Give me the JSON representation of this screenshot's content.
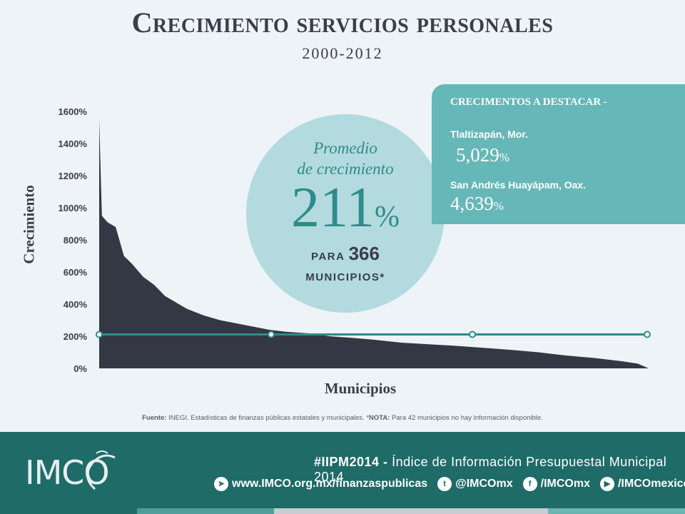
{
  "header": {
    "title": "Crecimiento servicios personales",
    "subtitle": "2000-2012"
  },
  "chart_data": {
    "type": "area",
    "title": "Crecimiento servicios personales",
    "subtitle": "2000-2012",
    "xlabel": "Municipios",
    "ylabel": "Crecimiento",
    "ylim": [
      0,
      1600
    ],
    "yticks": [
      "0%",
      "200%",
      "400%",
      "600%",
      "800%",
      "1000%",
      "1200%",
      "1400%",
      "1600%"
    ],
    "x_count": 366,
    "series": [
      {
        "values_desc_percentile": [
          [
            0,
            1550
          ],
          [
            0.5,
            950
          ],
          [
            1.5,
            910
          ],
          [
            3,
            880
          ],
          [
            4.5,
            700
          ],
          [
            6,
            650
          ],
          [
            8,
            570
          ],
          [
            10,
            520
          ],
          [
            12,
            450
          ],
          [
            14,
            410
          ],
          [
            16,
            370
          ],
          [
            19,
            330
          ],
          [
            22,
            300
          ],
          [
            25,
            280
          ],
          [
            28,
            260
          ],
          [
            31,
            240
          ],
          [
            34,
            228
          ],
          [
            38,
            218
          ],
          [
            42,
            200
          ],
          [
            46,
            190
          ],
          [
            50,
            178
          ],
          [
            55,
            160
          ],
          [
            60,
            150
          ],
          [
            65,
            140
          ],
          [
            70,
            128
          ],
          [
            75,
            115
          ],
          [
            80,
            100
          ],
          [
            85,
            80
          ],
          [
            90,
            65
          ],
          [
            95,
            45
          ],
          [
            98,
            30
          ],
          [
            100,
            0
          ]
        ]
      }
    ],
    "reference_line": {
      "value": 211,
      "color": "#2e8c8a"
    },
    "area_color": "#343744"
  },
  "highlight": {
    "label": "Promedio",
    "label2": "de crecimiento",
    "value": "211",
    "unit": "%",
    "para": "PARA",
    "count": "366",
    "municipios": "MUNICIPIOS*"
  },
  "destacar": {
    "title": "CRECIMENTOS A DESTACAR -",
    "items": [
      {
        "name": "Tlaltizapán,  Mor.",
        "value": "5,029",
        "unit": "%"
      },
      {
        "name": "San Andrés Huayápam,  Oax.",
        "value": "4,639",
        "unit": "%"
      }
    ]
  },
  "source": {
    "label": "Fuente:",
    "text": " INEGI.  Estadísticas  de  finanzas  públicas  estatales  y  municipales.  *",
    "nota_label": "NOTA:",
    "nota_text": " Para 42 municipios no hay información disponible."
  },
  "footer": {
    "logo": "IMCO",
    "hashtag": "#IIPM2014 -",
    "hashtag_text": " Índice de Información Presupuestal Municipal 2014",
    "url": "www.IMCO.org.mx/finanzaspublicas",
    "twitter": "@IMCOmx",
    "facebook": "/IMCOmx",
    "youtube": "/IMCOmexico",
    "colors": [
      "#1e6b68",
      "#4f9e9b",
      "#c9ccd2",
      "#6ab5b0"
    ]
  }
}
